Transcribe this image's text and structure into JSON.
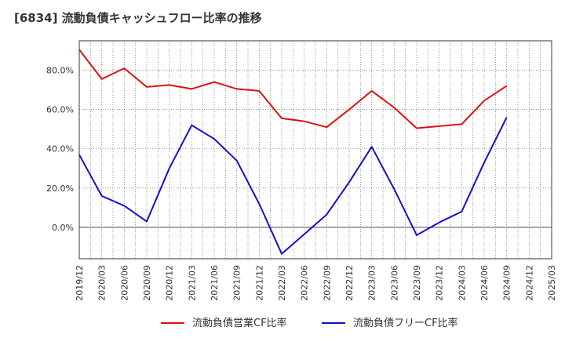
{
  "chart_data": {
    "type": "line",
    "title": "[6834]  流動負債キャッシュフロー比率の推移",
    "x": [
      "2019/12",
      "2020/03",
      "2020/06",
      "2020/09",
      "2020/12",
      "2021/03",
      "2021/06",
      "2021/09",
      "2021/12",
      "2022/03",
      "2022/06",
      "2022/09",
      "2022/12",
      "2023/03",
      "2023/06",
      "2023/09",
      "2023/12",
      "2024/03",
      "2024/06",
      "2024/09",
      "2024/12",
      "2025/03"
    ],
    "ylim": [
      -16,
      95
    ],
    "yticks": [
      0,
      20,
      40,
      60,
      80
    ],
    "ytick_labels": [
      "0.0%",
      "20.0%",
      "40.0%",
      "60.0%",
      "80.0%"
    ],
    "grid": true,
    "legend_position": "bottom",
    "series": [
      {
        "name": "流動負債営業CF比率",
        "color": "#dd1111",
        "values": [
          90.5,
          75.5,
          81,
          71.5,
          72.5,
          70.5,
          74,
          70.5,
          69.5,
          55.5,
          54,
          51,
          60,
          69.5,
          61,
          50.5,
          51.5,
          52.5,
          64.5,
          72,
          null,
          null
        ]
      },
      {
        "name": "流動負債フリーCF比率",
        "color": "#1111cc",
        "values": [
          37,
          16,
          11,
          3,
          30,
          52,
          45,
          34,
          12,
          -13.5,
          -3.5,
          6.5,
          23,
          41,
          19.5,
          -4,
          2.5,
          8,
          33,
          56,
          null,
          null
        ]
      }
    ]
  }
}
